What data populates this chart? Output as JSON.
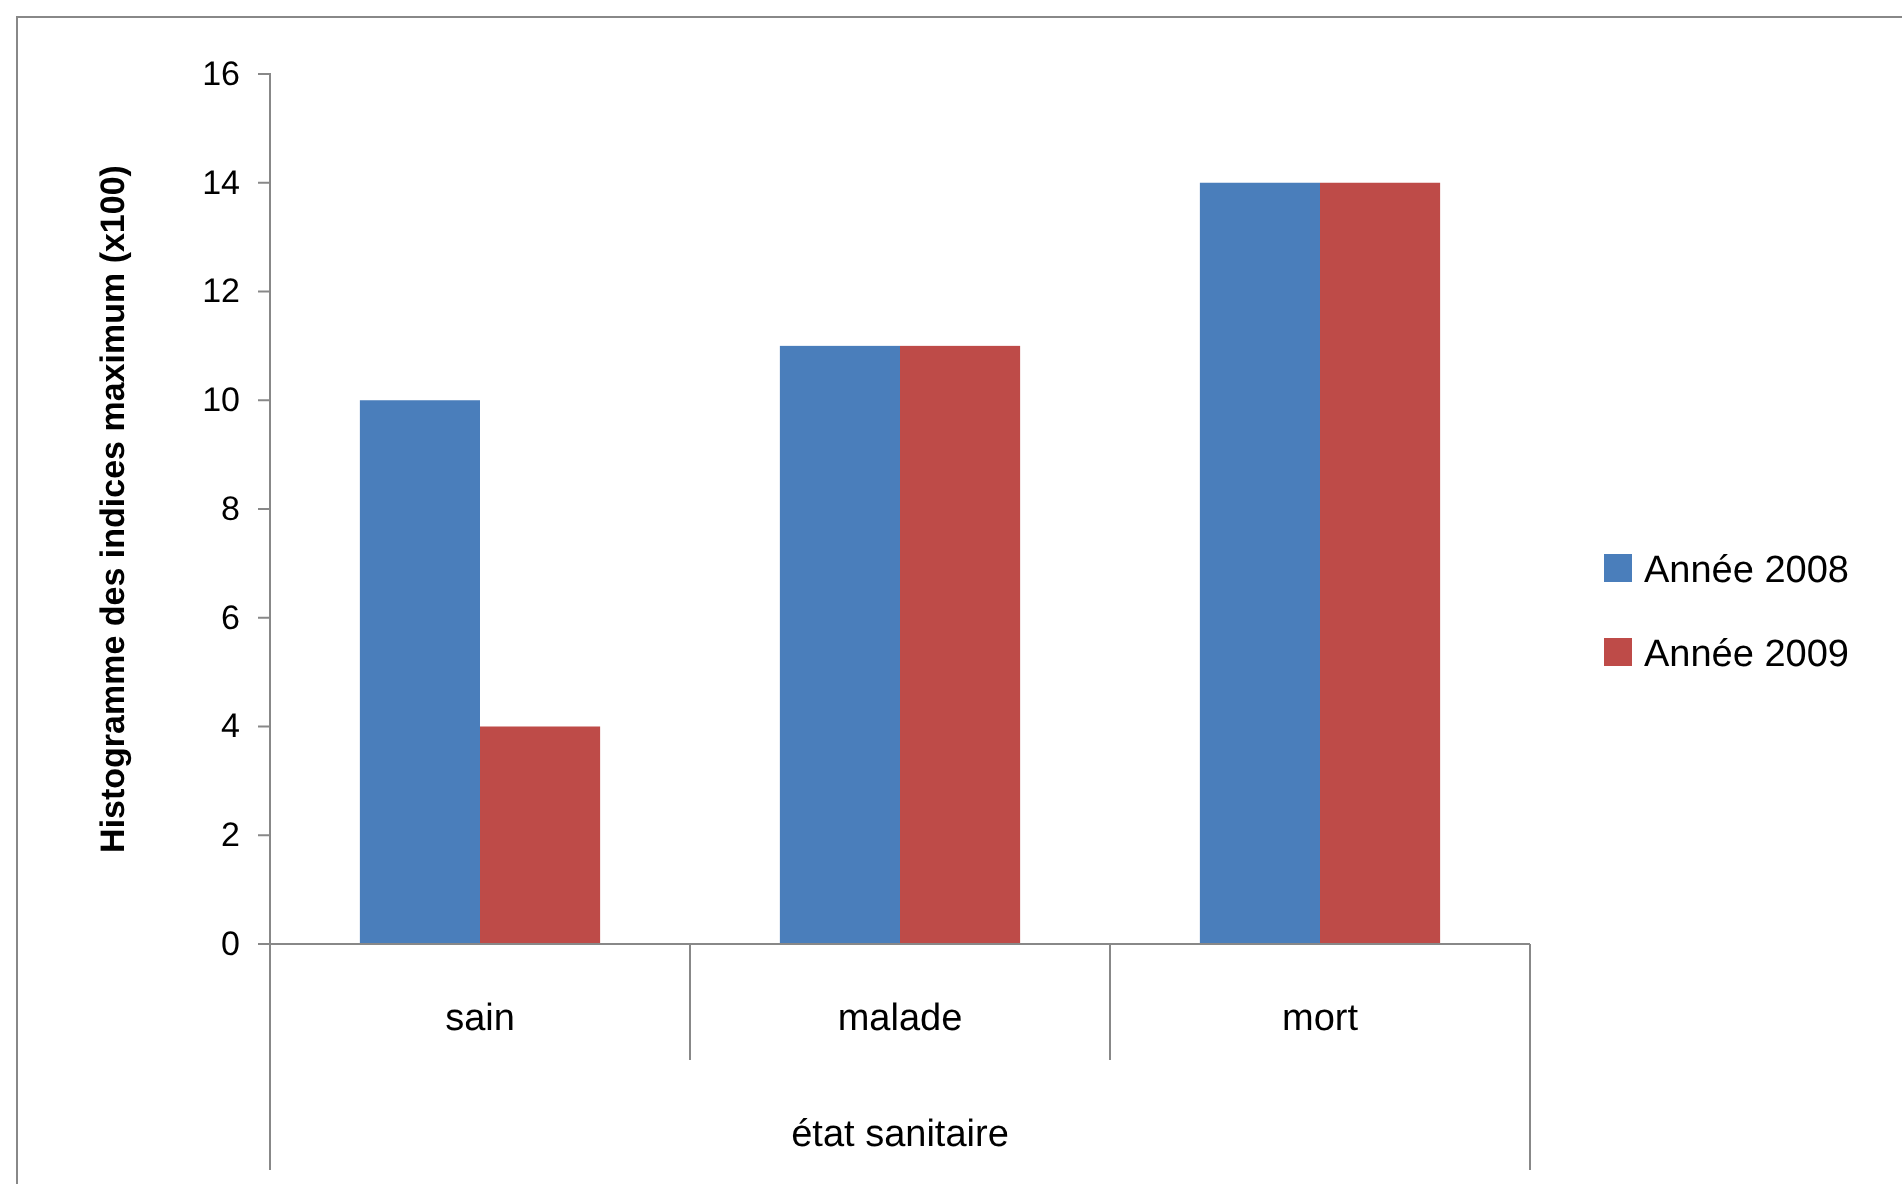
{
  "chart_data": {
    "type": "bar",
    "xlabel": "état sanitaire",
    "ylabel": "Histogramme des indices maximum (x100)",
    "categories": [
      "sain",
      "malade",
      "mort"
    ],
    "series": [
      {
        "name": "Année 2008",
        "color": "#4a7ebb",
        "values": [
          10,
          11,
          14
        ]
      },
      {
        "name": "Année 2009",
        "color": "#be4b48",
        "values": [
          4,
          11,
          14
        ]
      }
    ],
    "ylim": [
      0,
      16
    ],
    "yticks": [
      0,
      2,
      4,
      6,
      8,
      10,
      12,
      14,
      16
    ],
    "grid": false,
    "legend": "right"
  }
}
